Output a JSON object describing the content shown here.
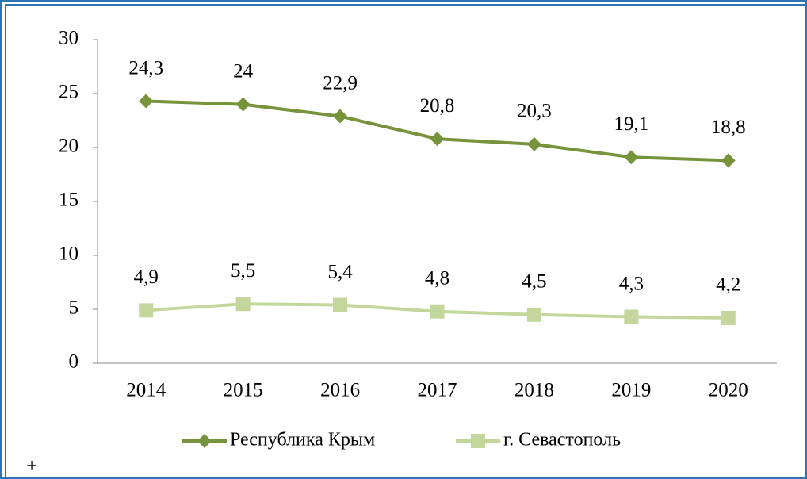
{
  "chart_data": {
    "type": "line",
    "categories": [
      "2014",
      "2015",
      "2016",
      "2017",
      "2018",
      "2019",
      "2020"
    ],
    "series": [
      {
        "name": "Республика Крым",
        "color": "#77933c",
        "marker": "diamond",
        "values": [
          24.3,
          24,
          22.9,
          20.8,
          20.3,
          19.1,
          18.8
        ],
        "value_labels": [
          "24,3",
          "24",
          "22,9",
          "20,8",
          "20,3",
          "19,1",
          "18,8"
        ]
      },
      {
        "name": "г. Севастополь",
        "color": "#c3d69b",
        "marker": "square",
        "values": [
          4.9,
          5.5,
          5.4,
          4.8,
          4.5,
          4.3,
          4.2
        ],
        "value_labels": [
          "4,9",
          "5,5",
          "5,4",
          "4,8",
          "4,5",
          "4,3",
          "4,2"
        ]
      }
    ],
    "ylim": [
      0,
      30
    ],
    "yticks": [
      0,
      5,
      10,
      15,
      20,
      25,
      30
    ],
    "legend": "bottom",
    "annotation": "+"
  }
}
